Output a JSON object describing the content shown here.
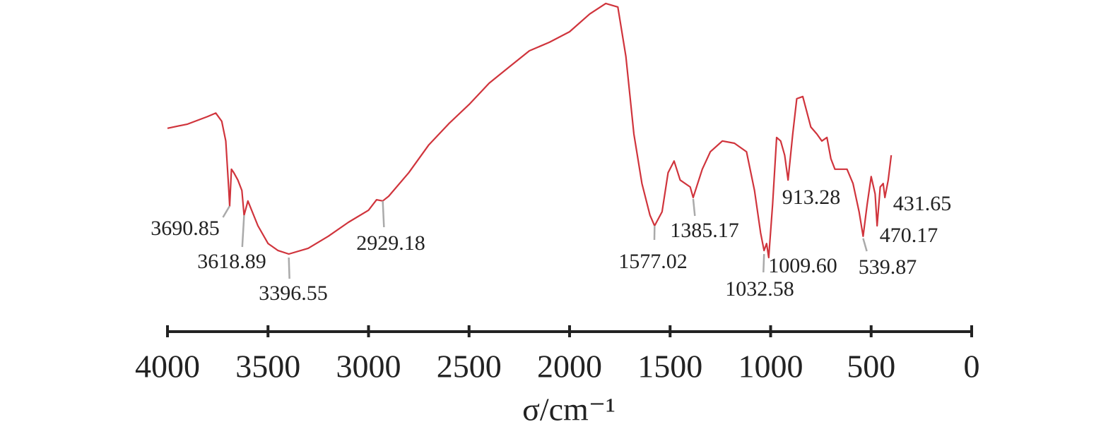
{
  "chart_data": {
    "type": "line",
    "x_label": "σ/cm⁻¹",
    "color": "#d0343c",
    "xlim": [
      4000,
      0
    ],
    "xticks": [
      4000,
      3500,
      3000,
      2500,
      2000,
      1500,
      1000,
      500,
      0
    ],
    "ylim": [
      0,
      100
    ],
    "x": [
      4000,
      3900,
      3800,
      3760,
      3730,
      3710,
      3695,
      3690.85,
      3682,
      3670,
      3650,
      3630,
      3618.89,
      3600,
      3550,
      3500,
      3450,
      3396.55,
      3300,
      3200,
      3100,
      3000,
      2960,
      2929.18,
      2900,
      2800,
      2700,
      2600,
      2500,
      2400,
      2300,
      2200,
      2100,
      2000,
      1900,
      1820,
      1760,
      1720,
      1680,
      1640,
      1600,
      1577.02,
      1540,
      1510,
      1480,
      1450,
      1400,
      1385.17,
      1340,
      1300,
      1240,
      1180,
      1120,
      1080,
      1050,
      1032.58,
      1020,
      1009.6,
      990,
      970,
      950,
      930,
      913.28,
      890,
      870,
      840,
      800,
      770,
      745,
      720,
      700,
      680,
      620,
      590,
      560,
      539.87,
      520,
      500,
      480,
      470.17,
      455,
      440,
      431.65,
      415,
      400
    ],
    "values": [
      59.6,
      60.9,
      63.3,
      64.4,
      61.8,
      55.6,
      40,
      35.1,
      46.7,
      45.6,
      43.3,
      40,
      32.2,
      36.7,
      28.9,
      23.3,
      21.1,
      20,
      21.8,
      25.6,
      30,
      33.8,
      37.1,
      36.7,
      38.2,
      45.6,
      54.4,
      61.1,
      67.1,
      73.8,
      78.9,
      84,
      86.7,
      90,
      95.6,
      98.9,
      97.8,
      82.2,
      57.8,
      42.2,
      32.2,
      28.9,
      33.3,
      45.6,
      49.3,
      43.3,
      41.1,
      37.8,
      46.7,
      52.2,
      55.6,
      54.9,
      52.2,
      40,
      26.7,
      21.1,
      23.3,
      18.9,
      35.6,
      56.7,
      55.6,
      51.1,
      43.3,
      57.8,
      68.9,
      69.6,
      60,
      57.8,
      55.6,
      56.7,
      50,
      46.7,
      46.7,
      42.2,
      33.3,
      25.6,
      35.6,
      44.4,
      38.9,
      28.9,
      41.1,
      42.2,
      37.8,
      43.3,
      51.1
    ],
    "annotations": [
      {
        "x": 3690.85,
        "label": "3690.85"
      },
      {
        "x": 3618.89,
        "label": "3618.89"
      },
      {
        "x": 3396.55,
        "label": "3396.55"
      },
      {
        "x": 2929.18,
        "label": "2929.18"
      },
      {
        "x": 1577.02,
        "label": "1577.02"
      },
      {
        "x": 1385.17,
        "label": "1385.17"
      },
      {
        "x": 1032.58,
        "label": "1032.58"
      },
      {
        "x": 1009.6,
        "label": "1009.60"
      },
      {
        "x": 913.28,
        "label": "913.28"
      },
      {
        "x": 539.87,
        "label": "539.87"
      },
      {
        "x": 470.17,
        "label": "470.17"
      },
      {
        "x": 431.65,
        "label": "431.65"
      }
    ]
  }
}
